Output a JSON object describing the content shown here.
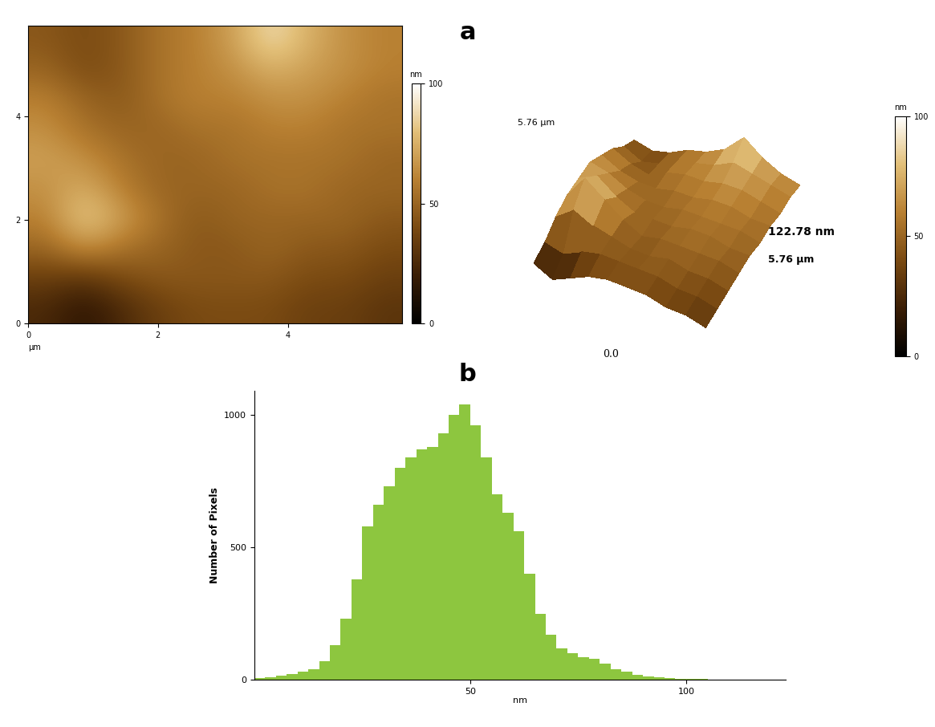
{
  "chart_data": [
    {
      "type": "heatmap",
      "panel_label": "a",
      "xlim": [
        0,
        5.76
      ],
      "ylim": [
        0,
        5.76
      ],
      "xticks": [
        0,
        2,
        4
      ],
      "yticks": [
        0,
        2,
        4
      ],
      "x_label": "µm",
      "cells": [
        [
          45,
          40,
          45,
          55,
          60,
          70,
          90,
          75,
          65,
          60
        ],
        [
          50,
          40,
          45,
          55,
          60,
          65,
          75,
          70,
          65,
          60
        ],
        [
          60,
          50,
          45,
          55,
          60,
          60,
          65,
          65,
          60,
          55
        ],
        [
          65,
          55,
          50,
          50,
          55,
          55,
          60,
          60,
          55,
          55
        ],
        [
          70,
          65,
          55,
          50,
          50,
          55,
          55,
          55,
          55,
          50
        ],
        [
          65,
          75,
          60,
          50,
          50,
          50,
          55,
          55,
          50,
          50
        ],
        [
          60,
          85,
          70,
          55,
          45,
          50,
          50,
          50,
          50,
          45
        ],
        [
          50,
          65,
          55,
          50,
          45,
          45,
          50,
          45,
          45,
          40
        ],
        [
          35,
          30,
          40,
          45,
          45,
          45,
          45,
          40,
          40,
          35
        ],
        [
          25,
          15,
          25,
          35,
          40,
          40,
          40,
          35,
          35,
          30
        ]
      ],
      "colorbar": {
        "range": [
          0,
          100
        ],
        "ticks": [
          0,
          50,
          100
        ],
        "label": "nm"
      }
    },
    {
      "type": "surface",
      "tick_labels": false,
      "xlim": [
        0,
        5.76
      ],
      "ylim": [
        0,
        5.76
      ],
      "zlim": [
        0,
        122.78
      ],
      "cells": [
        [
          45,
          40,
          45,
          55,
          60,
          70,
          90,
          75,
          65,
          60
        ],
        [
          50,
          40,
          45,
          55,
          60,
          65,
          75,
          70,
          65,
          60
        ],
        [
          60,
          50,
          45,
          55,
          60,
          60,
          65,
          65,
          60,
          55
        ],
        [
          65,
          55,
          50,
          50,
          55,
          55,
          60,
          60,
          55,
          55
        ],
        [
          70,
          65,
          55,
          50,
          50,
          55,
          55,
          55,
          55,
          50
        ],
        [
          65,
          75,
          60,
          50,
          50,
          50,
          55,
          55,
          50,
          50
        ],
        [
          60,
          85,
          70,
          55,
          45,
          50,
          50,
          50,
          50,
          45
        ],
        [
          50,
          65,
          55,
          50,
          45,
          45,
          50,
          45,
          45,
          40
        ],
        [
          35,
          30,
          40,
          45,
          45,
          45,
          45,
          40,
          40,
          35
        ],
        [
          25,
          15,
          25,
          35,
          40,
          40,
          40,
          35,
          35,
          30
        ]
      ],
      "labels": {
        "y_length": "5.76 µm",
        "height": "122.78 nm",
        "x_length": "5.76 µm",
        "origin": "0.0"
      },
      "colorbar": {
        "range": [
          0,
          100
        ],
        "ticks": [
          0,
          50,
          100
        ],
        "label": "nm"
      }
    },
    {
      "type": "histogram",
      "panel_label": "b",
      "color": "#8dc63f",
      "bins": [
        0,
        2.5,
        5,
        7.5,
        10,
        12.5,
        15,
        17.5,
        20,
        22.5,
        25,
        27.5,
        30,
        32.5,
        35,
        37.5,
        40,
        42.5,
        45,
        47.5,
        50,
        52.5,
        55,
        57.5,
        60,
        62.5,
        65,
        67.5,
        70,
        72.5,
        75,
        77.5,
        80,
        82.5,
        85,
        87.5,
        90,
        92.5,
        95,
        97.5,
        100,
        102.5,
        105,
        107.5,
        110,
        112.5,
        115,
        117.5,
        120,
        122.5
      ],
      "counts": [
        5,
        8,
        15,
        22,
        30,
        40,
        70,
        130,
        230,
        380,
        580,
        660,
        730,
        800,
        840,
        870,
        880,
        930,
        1000,
        1040,
        960,
        840,
        700,
        630,
        560,
        400,
        250,
        170,
        120,
        100,
        85,
        80,
        60,
        40,
        30,
        20,
        12,
        8,
        5,
        3,
        2,
        2,
        1,
        1,
        1,
        1,
        1,
        1,
        1
      ],
      "xlim": [
        0,
        123
      ],
      "ylim": [
        0,
        1090
      ],
      "xticks": [
        50,
        100
      ],
      "yticks": [
        0,
        500,
        1000
      ],
      "x_label": "nm",
      "y_label": "Number of Pixels"
    }
  ]
}
